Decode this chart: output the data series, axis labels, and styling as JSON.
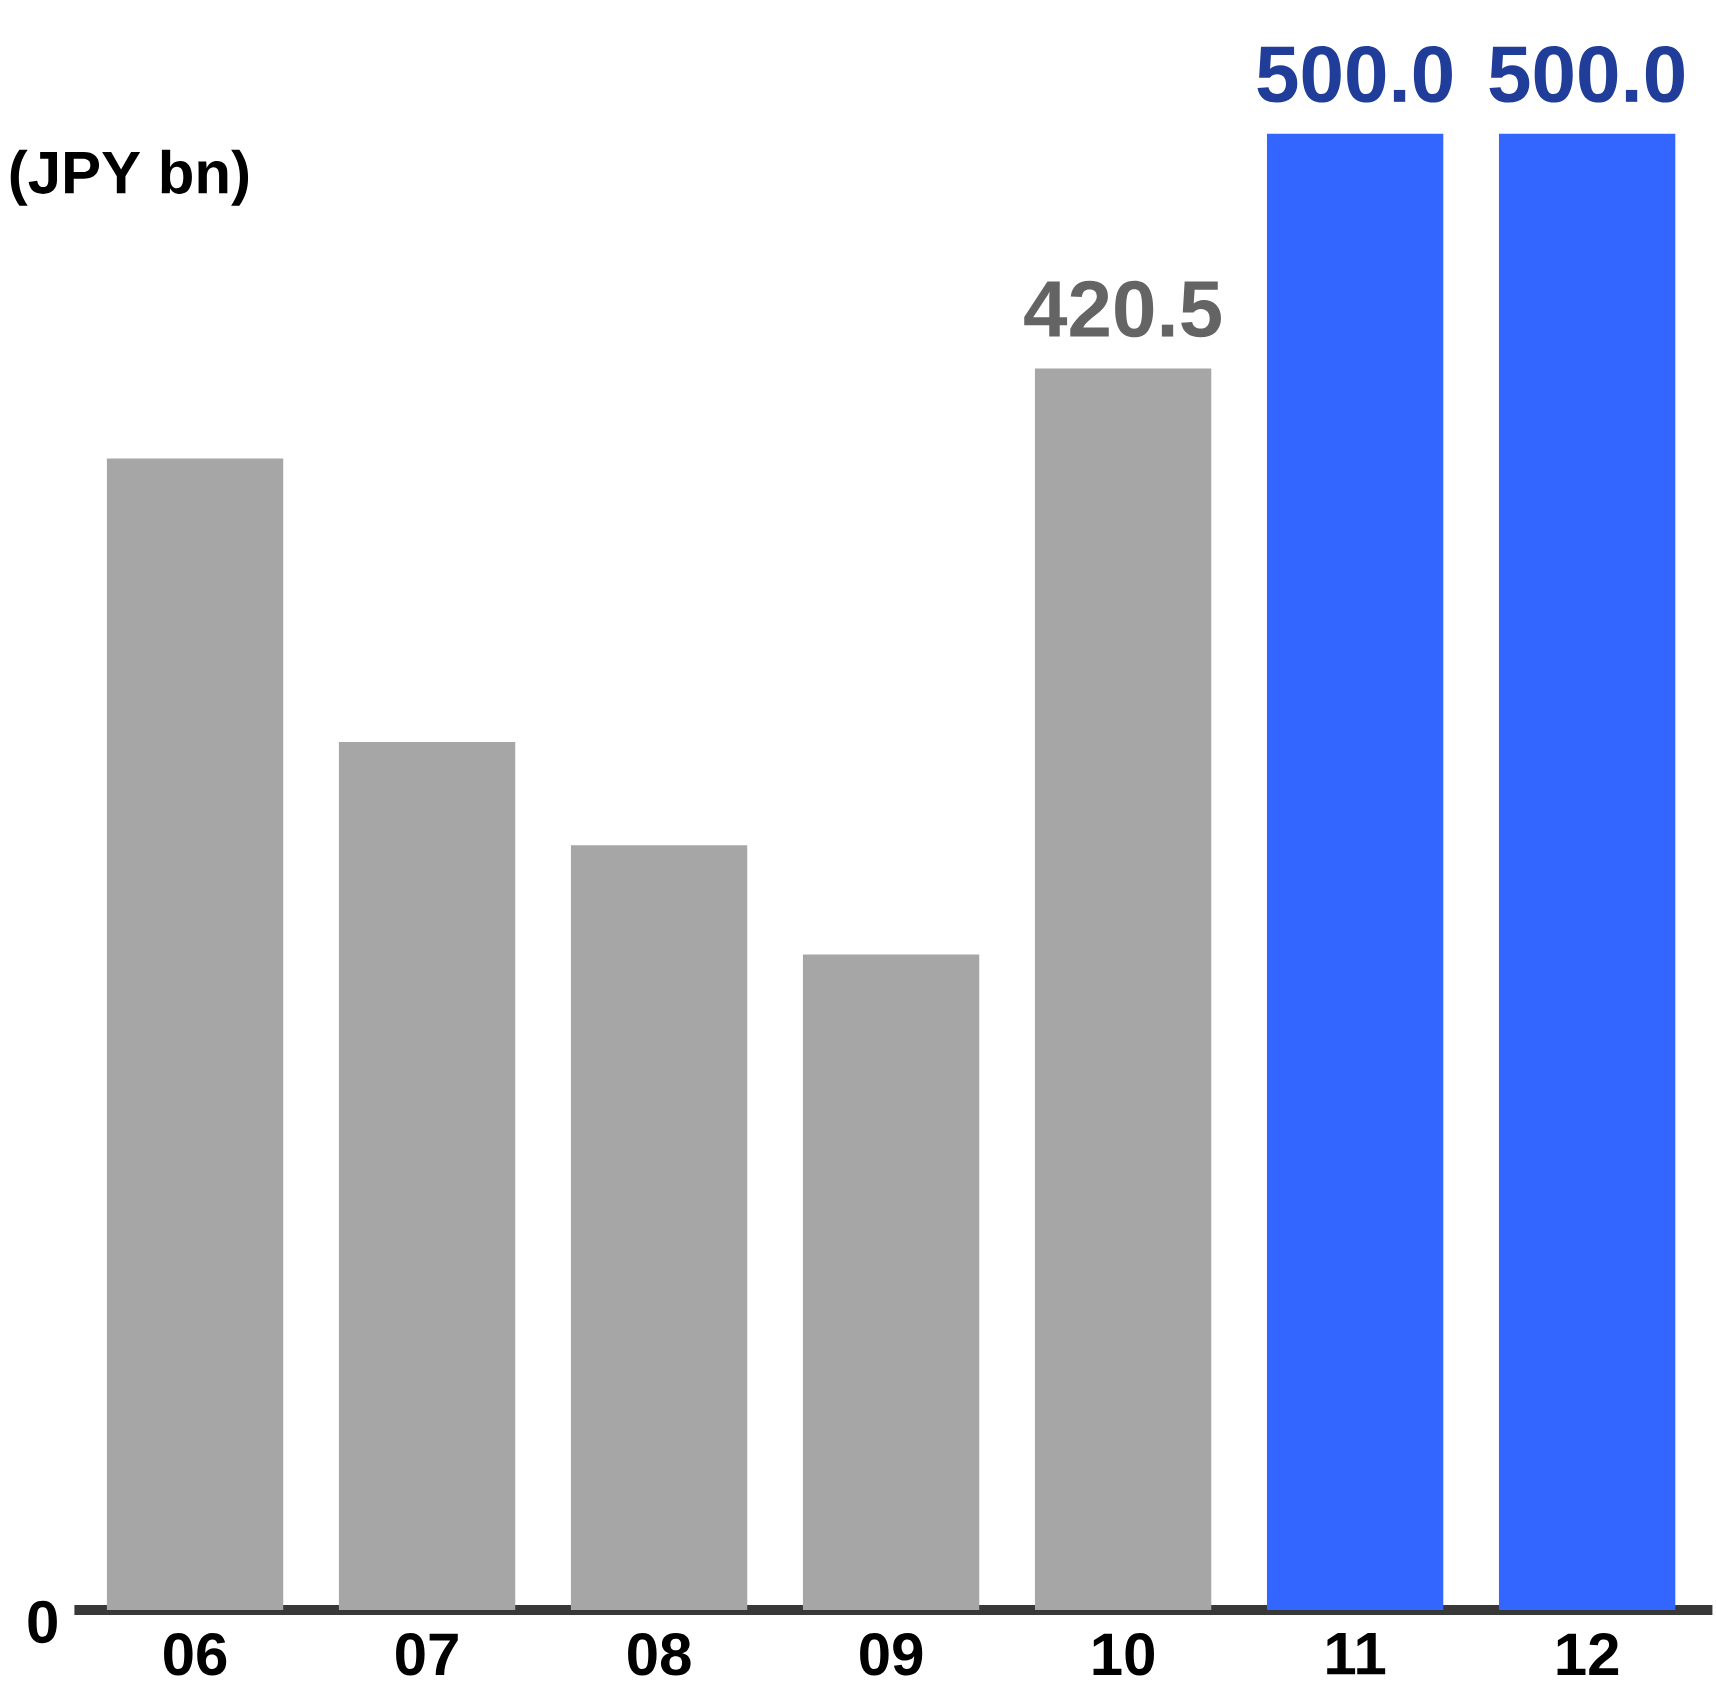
{
  "chart_data": {
    "type": "bar",
    "ylabel": "(JPY bn)",
    "categories": [
      "06",
      "07",
      "08",
      "09",
      "10",
      "11",
      "12"
    ],
    "values": [
      390,
      294,
      259,
      222,
      420.5,
      500,
      500
    ],
    "colors": [
      "#a6a6a6",
      "#a6a6a6",
      "#a6a6a6",
      "#a6a6a6",
      "#a6a6a6",
      "#3366ff",
      "#3366ff"
    ],
    "value_labels": [
      null,
      null,
      null,
      null,
      "420.5",
      "500.0",
      "500.0"
    ],
    "annotations": [
      "0"
    ]
  }
}
